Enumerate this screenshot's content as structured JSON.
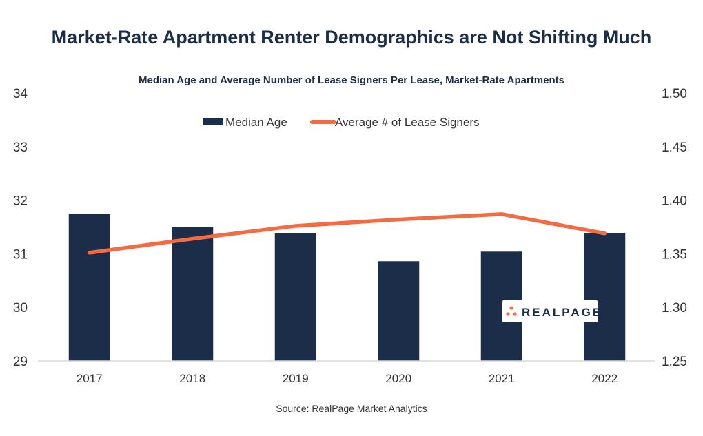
{
  "chart_data": {
    "type": "bar",
    "title": "Market-Rate Apartment Renter Demographics are Not Shifting Much",
    "subtitle": "Median Age and Average Number of Lease Signers Per Lease, Market-Rate Apartments",
    "categories": [
      "2017",
      "2018",
      "2019",
      "2020",
      "2021",
      "2022"
    ],
    "series": [
      {
        "name": "Median Age",
        "type": "bar",
        "axis": "left",
        "color": "#1b2d48",
        "values": [
          31.75,
          31.5,
          31.38,
          30.86,
          31.04,
          31.39
        ]
      },
      {
        "name": "Average # of Lease Signers",
        "type": "line",
        "axis": "right",
        "color": "#f26b43",
        "values": [
          1.351,
          1.364,
          1.376,
          1.382,
          1.387,
          1.369
        ]
      }
    ],
    "yleft": {
      "lim": [
        29,
        34
      ],
      "ticks": [
        "29",
        "30",
        "31",
        "32",
        "33",
        "34"
      ]
    },
    "yright": {
      "lim": [
        1.25,
        1.5
      ],
      "ticks": [
        "1.25",
        "1.30",
        "1.35",
        "1.40",
        "1.45",
        "1.50"
      ]
    },
    "legend_position": "top-center",
    "grid": false,
    "source": "Source: RealPage Market Analytics"
  },
  "logo": {
    "text": "REALPAGE"
  },
  "colors": {
    "navy": "#1b2d48",
    "orange": "#f26b43",
    "axis": "#d9d9d9"
  }
}
